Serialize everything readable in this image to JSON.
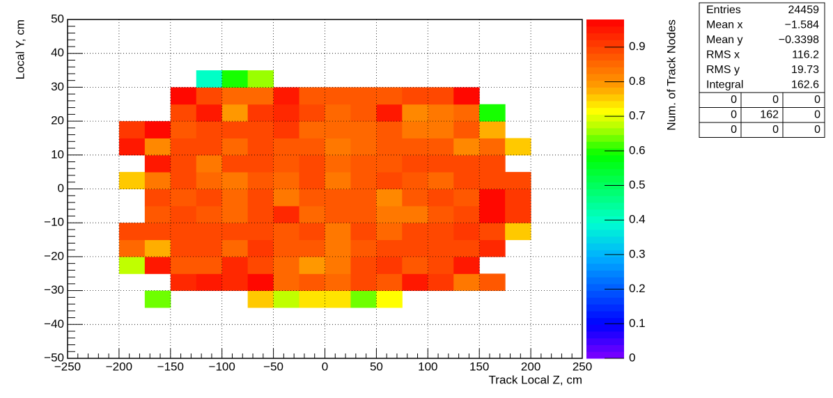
{
  "chart_data": {
    "type": "heatmap",
    "x_label": "Track Local Z, cm",
    "y_label": "Local Y, cm",
    "z_label": "Num. of Track Nodes",
    "xbins": [
      -200,
      -175,
      -150,
      -125,
      -100,
      -75,
      -50,
      -25,
      0,
      25,
      50,
      75,
      100,
      125,
      150,
      175,
      200
    ],
    "ybins": [
      -35,
      -30,
      -25,
      -20,
      -15,
      -10,
      -5,
      0,
      5,
      10,
      15,
      20,
      25,
      30,
      35
    ],
    "z": [
      [
        null,
        0.63,
        null,
        null,
        null,
        0.76,
        0.68,
        0.74,
        0.74,
        0.63,
        0.72,
        null,
        null,
        null,
        null,
        null
      ],
      [
        null,
        null,
        0.93,
        0.95,
        0.94,
        0.97,
        0.86,
        0.88,
        0.86,
        0.9,
        0.88,
        0.95,
        0.92,
        0.83,
        0.87,
        null
      ],
      [
        0.68,
        0.95,
        0.88,
        0.88,
        0.93,
        0.9,
        0.86,
        0.8,
        0.83,
        0.9,
        0.92,
        0.87,
        0.9,
        0.95,
        null,
        null
      ],
      [
        0.86,
        0.77,
        0.9,
        0.9,
        0.85,
        0.92,
        0.87,
        0.87,
        0.84,
        0.88,
        0.9,
        0.9,
        0.9,
        0.9,
        0.93,
        null
      ],
      [
        0.9,
        0.9,
        0.9,
        0.9,
        0.89,
        0.89,
        0.87,
        0.9,
        0.84,
        0.9,
        0.85,
        0.89,
        0.89,
        0.92,
        0.9,
        0.75
      ],
      [
        null,
        0.88,
        0.9,
        0.88,
        0.85,
        0.9,
        0.93,
        0.85,
        0.88,
        0.88,
        0.84,
        0.84,
        0.88,
        0.9,
        0.98,
        0.92
      ],
      [
        null,
        0.9,
        0.88,
        0.9,
        0.85,
        0.9,
        0.84,
        0.87,
        0.88,
        0.88,
        0.82,
        0.87,
        0.89,
        0.88,
        0.98,
        0.92
      ],
      [
        0.75,
        0.84,
        0.89,
        0.85,
        0.84,
        0.88,
        0.86,
        0.89,
        0.83,
        0.88,
        0.89,
        0.87,
        0.85,
        0.89,
        0.9,
        0.9
      ],
      [
        null,
        0.95,
        0.9,
        0.84,
        0.9,
        0.9,
        0.88,
        0.89,
        0.86,
        0.88,
        0.87,
        0.9,
        0.89,
        0.9,
        0.9,
        null
      ],
      [
        0.95,
        0.82,
        0.9,
        0.89,
        0.86,
        0.9,
        0.87,
        0.88,
        0.84,
        0.86,
        0.88,
        0.88,
        0.88,
        0.82,
        0.86,
        0.75
      ],
      [
        0.92,
        0.98,
        0.88,
        0.9,
        0.9,
        0.9,
        0.92,
        0.86,
        0.85,
        0.85,
        0.87,
        0.84,
        0.83,
        0.88,
        0.78,
        null
      ],
      [
        null,
        null,
        0.9,
        0.95,
        0.8,
        0.92,
        0.93,
        0.9,
        0.85,
        0.88,
        0.95,
        0.82,
        0.83,
        0.86,
        0.6,
        null
      ],
      [
        null,
        null,
        0.97,
        0.9,
        0.85,
        0.85,
        0.95,
        0.88,
        0.88,
        0.88,
        0.88,
        0.9,
        0.9,
        0.97,
        null,
        null
      ],
      [
        null,
        null,
        null,
        0.4,
        0.6,
        0.65,
        null,
        null,
        null,
        null,
        null,
        null,
        null,
        null,
        null,
        null
      ]
    ],
    "xlim": [
      -250,
      250
    ],
    "ylim": [
      -50,
      50
    ],
    "zlim": [
      0,
      0.98
    ],
    "xticks": [
      {
        "value": -250,
        "label": "−250"
      },
      {
        "value": -200,
        "label": "−200"
      },
      {
        "value": -150,
        "label": "−150"
      },
      {
        "value": -100,
        "label": "−100"
      },
      {
        "value": -50,
        "label": "−50"
      },
      0,
      50,
      100,
      150,
      200,
      250
    ],
    "yticks": [
      {
        "value": -50,
        "label": "−50"
      },
      {
        "value": -40,
        "label": "−40"
      },
      {
        "value": -30,
        "label": "−30"
      },
      {
        "value": -20,
        "label": "−20"
      },
      {
        "value": -10,
        "label": "−10"
      },
      0,
      10,
      20,
      30,
      40,
      50
    ],
    "zticks": [
      0,
      0.1,
      0.2,
      0.3,
      0.4,
      0.5,
      0.6,
      0.7,
      0.8,
      0.9
    ],
    "grid": true,
    "palette_steps": 50,
    "colorscale": [
      [
        0,
        "#8000ff"
      ],
      [
        0.1,
        "#0000ff"
      ],
      [
        0.3,
        "#00b0ff"
      ],
      [
        0.4,
        "#00ffd0"
      ],
      [
        0.6,
        "#00ff00"
      ],
      [
        0.68,
        "#b0ff00"
      ],
      [
        0.73,
        "#ffff00"
      ],
      [
        0.8,
        "#ffa000"
      ],
      [
        0.9,
        "#ff5000"
      ],
      [
        1,
        "#ff0000"
      ]
    ]
  },
  "stats_box": {
    "rows": [
      [
        "Entries",
        "24459"
      ],
      [
        "Mean x",
        "−1.584"
      ],
      [
        "Mean y",
        "−0.3398"
      ],
      [
        "RMS x",
        "116.2"
      ],
      [
        "RMS y",
        "19.73"
      ],
      [
        "Integral",
        "162.6"
      ]
    ],
    "table": [
      [
        "0",
        "0",
        "0"
      ],
      [
        "0",
        "162",
        "0"
      ],
      [
        "0",
        "0",
        "0"
      ]
    ]
  }
}
